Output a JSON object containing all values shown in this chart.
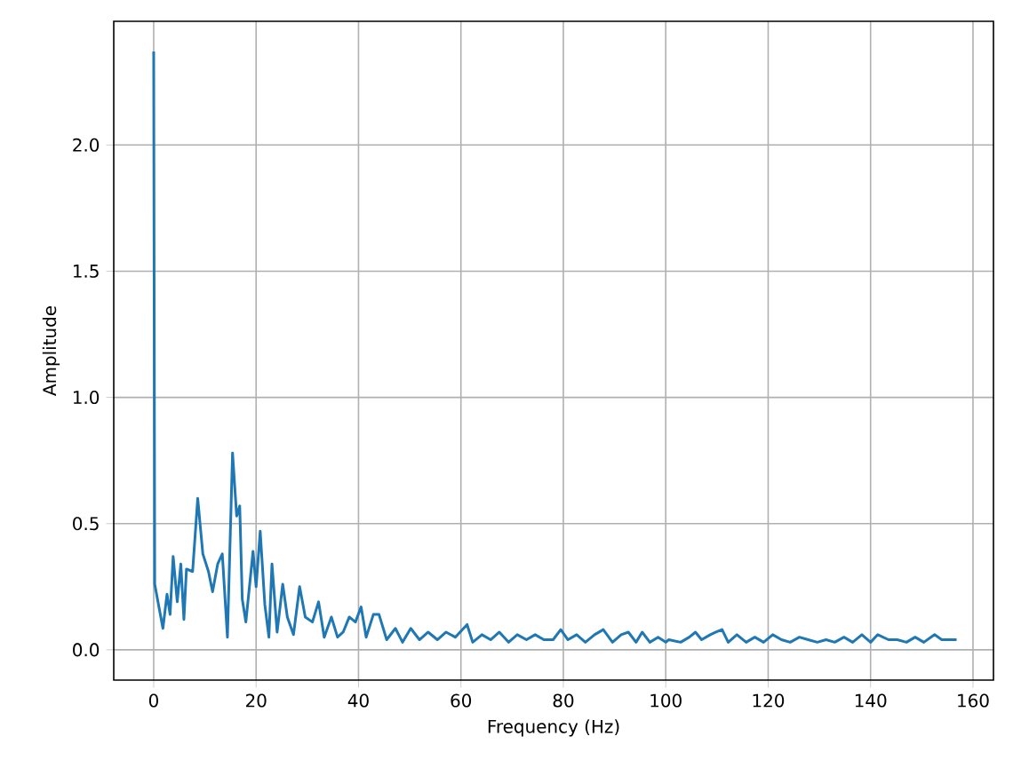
{
  "chart_data": {
    "type": "line",
    "xlabel": "Frequency (Hz)",
    "ylabel": "Amplitude",
    "color": "#1f77b4",
    "grid": true,
    "xlim": [
      -7.8,
      164
    ],
    "ylim": [
      -0.12,
      2.49
    ],
    "xticks": [
      0,
      20,
      40,
      60,
      80,
      100,
      120,
      140,
      160
    ],
    "yticks": [
      {
        "value": 0,
        "label": "0.0"
      },
      {
        "value": 0.5,
        "label": "0.5"
      },
      {
        "value": 1,
        "label": "1.0"
      },
      {
        "value": 1.5,
        "label": "1.5"
      },
      {
        "value": 2,
        "label": "2.0"
      }
    ],
    "x": [
      0,
      0.2,
      1.8,
      2.6,
      3.2,
      3.8,
      4.6,
      5.3,
      5.9,
      6.4,
      7.6,
      8.6,
      9.6,
      10.7,
      11.5,
      12.5,
      13.4,
      14.4,
      15.4,
      16.2,
      16.8,
      17.3,
      18,
      19.4,
      20,
      20.8,
      21.7,
      22.5,
      23.1,
      24.1,
      25.2,
      26.1,
      27.3,
      28.5,
      29.6,
      31,
      32.2,
      33.3,
      34.7,
      35.9,
      37,
      38.2,
      39.4,
      40.5,
      41.5,
      42.9,
      44,
      45.5,
      47.2,
      48.6,
      50.2,
      51.9,
      53.6,
      55.4,
      57.1,
      58.9,
      61.2,
      62.3,
      64.1,
      65.8,
      67.5,
      69.3,
      71,
      72.8,
      74.5,
      76.2,
      78,
      79.5,
      80.9,
      82.6,
      84.3,
      86.1,
      87.8,
      89.6,
      91.3,
      92.7,
      94.2,
      95.4,
      96.9,
      98.5,
      100,
      100.6,
      102.9,
      104.6,
      105.8,
      107,
      108.7,
      109.8,
      111,
      112.2,
      113.9,
      115.7,
      117.4,
      119.1,
      120.9,
      122.6,
      124.3,
      126.1,
      127.8,
      129.6,
      131.3,
      133,
      134.8,
      136.5,
      138.3,
      140,
      141.4,
      143.5,
      145.2,
      147,
      148.7,
      150.4,
      152.5,
      153.9,
      156.8
    ],
    "values": [
      2.37,
      0.26,
      0.085,
      0.22,
      0.14,
      0.37,
      0.19,
      0.34,
      0.12,
      0.32,
      0.31,
      0.6,
      0.38,
      0.31,
      0.23,
      0.34,
      0.38,
      0.05,
      0.78,
      0.53,
      0.57,
      0.2,
      0.11,
      0.39,
      0.25,
      0.47,
      0.18,
      0.05,
      0.34,
      0.07,
      0.26,
      0.13,
      0.06,
      0.25,
      0.13,
      0.11,
      0.19,
      0.05,
      0.13,
      0.05,
      0.07,
      0.13,
      0.11,
      0.17,
      0.05,
      0.14,
      0.14,
      0.04,
      0.085,
      0.03,
      0.085,
      0.04,
      0.07,
      0.04,
      0.07,
      0.05,
      0.1,
      0.03,
      0.06,
      0.04,
      0.07,
      0.03,
      0.06,
      0.04,
      0.06,
      0.04,
      0.04,
      0.08,
      0.04,
      0.06,
      0.03,
      0.06,
      0.08,
      0.03,
      0.06,
      0.07,
      0.03,
      0.07,
      0.03,
      0.05,
      0.03,
      0.04,
      0.03,
      0.05,
      0.07,
      0.04,
      0.06,
      0.07,
      0.08,
      0.03,
      0.06,
      0.03,
      0.05,
      0.03,
      0.06,
      0.04,
      0.03,
      0.05,
      0.04,
      0.03,
      0.04,
      0.03,
      0.05,
      0.03,
      0.06,
      0.03,
      0.06,
      0.04,
      0.04,
      0.03,
      0.05,
      0.03,
      0.06,
      0.04,
      0.04
    ]
  }
}
